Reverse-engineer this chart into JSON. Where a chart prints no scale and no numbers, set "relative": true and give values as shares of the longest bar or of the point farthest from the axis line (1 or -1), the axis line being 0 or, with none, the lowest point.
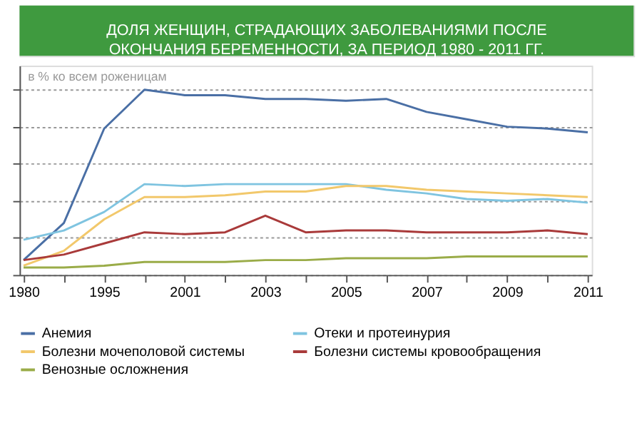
{
  "chart_data": {
    "type": "line",
    "title": "ДОЛЯ ЖЕНЩИН, СТРАДАЮЩИХ ЗАБОЛЕВАНИЯМИ ПОСЛЕ\nОКОНЧАНИЯ БЕРЕМЕННОСТИ, ЗА ПЕРИОД 1980 - 2011 ГГ.",
    "subtitle": "в % ко всем роженицам",
    "relative": true,
    "grid": "y",
    "legend": "bottom",
    "categories": [
      "1980",
      null,
      "1995",
      null,
      "2001",
      null,
      "2003",
      null,
      "2005",
      null,
      "2007",
      null,
      "2009",
      null,
      "2011"
    ],
    "series": [
      {
        "name": "Анемия",
        "color": "#4a6fa5",
        "values": [
          0.08,
          0.28,
          0.79,
          1.0,
          0.97,
          0.97,
          0.95,
          0.95,
          0.94,
          0.95,
          0.88,
          0.84,
          0.8,
          0.79,
          0.77
        ]
      },
      {
        "name": "Отеки и протеинурия",
        "color": "#7fc4e0",
        "values": [
          0.19,
          0.24,
          0.34,
          0.49,
          0.48,
          0.49,
          0.49,
          0.49,
          0.49,
          0.46,
          0.44,
          0.41,
          0.4,
          0.41,
          0.39
        ]
      },
      {
        "name": "Болезни мочеполовой системы",
        "color": "#f2c86b",
        "values": [
          0.05,
          0.13,
          0.3,
          0.42,
          0.42,
          0.43,
          0.45,
          0.45,
          0.48,
          0.48,
          0.46,
          0.45,
          0.44,
          0.43,
          0.42
        ]
      },
      {
        "name": "Болезни системы кровообращения",
        "color": "#a93a3a",
        "values": [
          0.08,
          0.11,
          0.17,
          0.23,
          0.22,
          0.23,
          0.32,
          0.23,
          0.24,
          0.24,
          0.23,
          0.23,
          0.23,
          0.24,
          0.22
        ]
      },
      {
        "name": "Венозные осложнения",
        "color": "#9aac48",
        "values": [
          0.04,
          0.04,
          0.05,
          0.07,
          0.07,
          0.07,
          0.08,
          0.08,
          0.09,
          0.09,
          0.09,
          0.1,
          0.1,
          0.1,
          0.1
        ]
      }
    ]
  }
}
